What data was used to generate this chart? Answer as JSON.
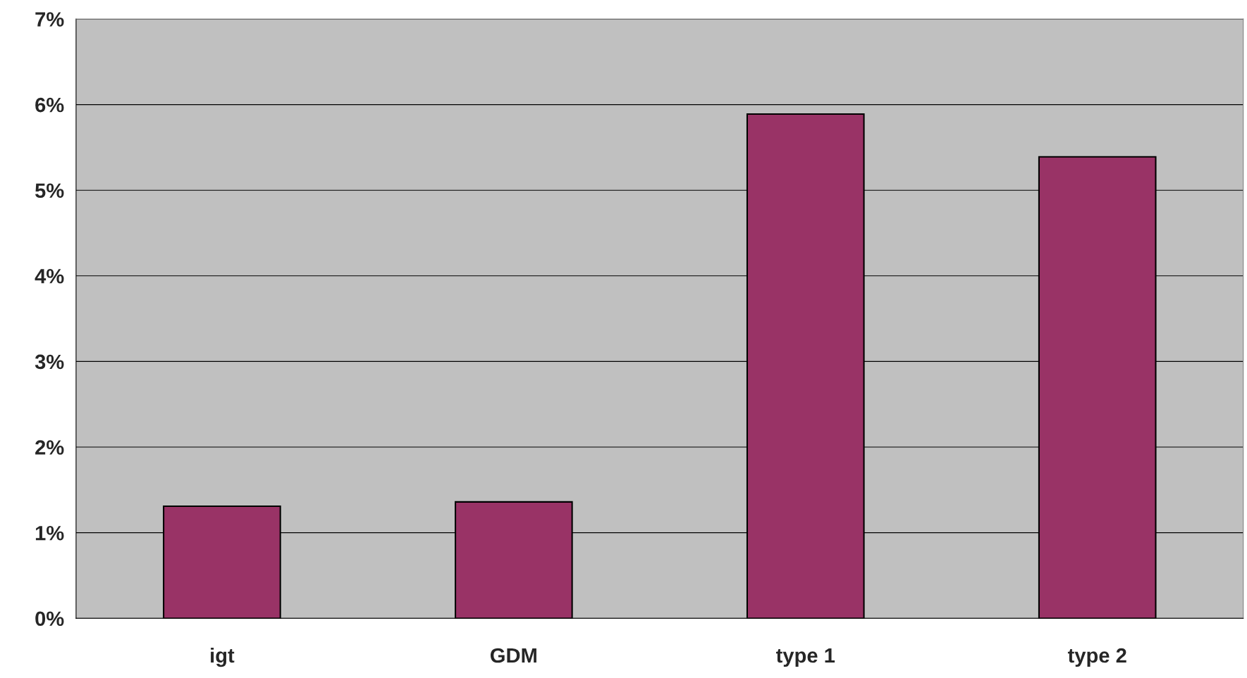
{
  "chart_data": {
    "type": "bar",
    "categories": [
      "igt",
      "GDM",
      "type 1",
      "type 2"
    ],
    "values": [
      1.31,
      1.36,
      5.89,
      5.39
    ],
    "color": "#993366",
    "ylim": [
      0,
      7
    ],
    "yticks": [
      {
        "value": 0,
        "label": "0%"
      },
      {
        "value": 1,
        "label": "1%"
      },
      {
        "value": 2,
        "label": "2%"
      },
      {
        "value": 3,
        "label": "3%"
      },
      {
        "value": 4,
        "label": "4%"
      },
      {
        "value": 5,
        "label": "5%"
      },
      {
        "value": 6,
        "label": "6%"
      },
      {
        "value": 7,
        "label": "7%"
      }
    ],
    "grid": "y",
    "legend": false
  }
}
